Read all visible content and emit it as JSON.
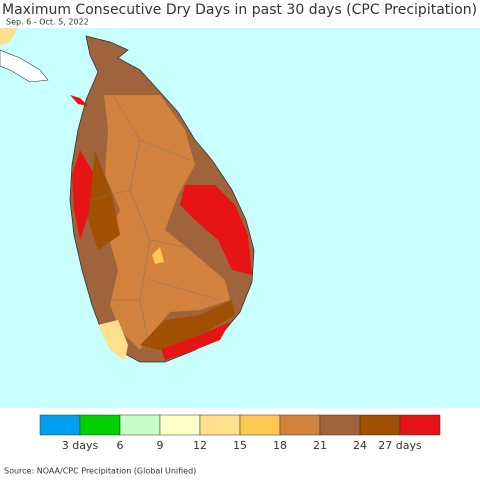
{
  "header": {
    "title": "Maximum Consecutive Dry Days in past 30 days (CPC Precipitation)",
    "subtitle": "Sep. 6 - Oct. 5, 2022"
  },
  "legend": {
    "colors": [
      "#00a0f0",
      "#00d200",
      "#c8ffc8",
      "#ffffc8",
      "#ffe08c",
      "#ffc850",
      "#d2823c",
      "#a0643c",
      "#a05000",
      "#e61414"
    ],
    "labels": [
      "3 days",
      "6",
      "9",
      "12",
      "15",
      "18",
      "21",
      "24",
      "27 days"
    ]
  },
  "source": "Source: NOAA/CPC Precipitation (Global Unified)"
}
